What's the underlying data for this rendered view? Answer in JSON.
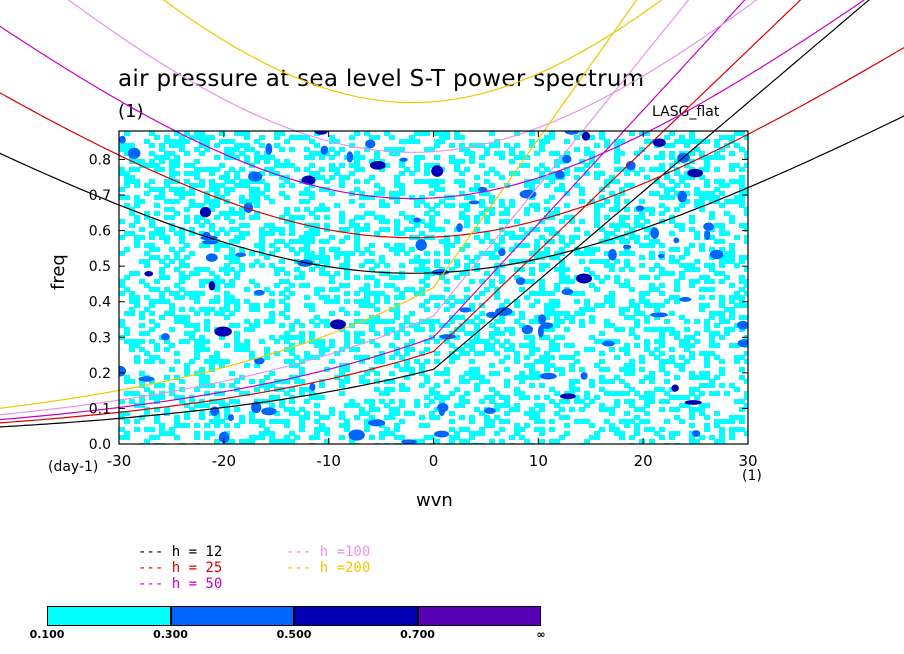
{
  "chart_data": {
    "type": "heatmap",
    "title": "air pressure at sea level S-T power spectrum",
    "subtitle": "(1)",
    "model_label": "LASG_flat",
    "xlabel": "wvn",
    "ylabel": "freq",
    "x_unit": "(1)",
    "y_unit": "(day-1)",
    "xlim": [
      -30,
      30
    ],
    "ylim": [
      0,
      0.88
    ],
    "x_ticks": [
      -30,
      -20,
      -10,
      0,
      10,
      20,
      30
    ],
    "x_tick_labels": [
      "-30",
      "-20",
      "-10",
      "0",
      "10",
      "20",
      "30"
    ],
    "y_ticks": [
      0.0,
      0.1,
      0.2,
      0.3,
      0.4,
      0.5,
      0.6,
      0.7,
      0.8
    ],
    "y_tick_labels": [
      "0.0",
      "0.1",
      "0.2",
      "0.3",
      "0.4",
      "0.5",
      "0.6",
      "0.7",
      "0.8"
    ],
    "contour_levels": [
      0.1,
      0.3,
      0.5,
      0.7
    ],
    "colorbar": {
      "labels": [
        "0.100",
        "0.300",
        "0.500",
        "0.700",
        "∞"
      ],
      "colors": [
        "#00ffff",
        "#0064ff",
        "#0000b4",
        "#5a00b4"
      ]
    },
    "dispersion_curves": [
      {
        "name": "h = 12",
        "color": "#000000",
        "min_freq": 0.48,
        "min_wvn": -2,
        "low_branch_at_0": 0.21
      },
      {
        "name": "h = 25",
        "color": "#dc0000",
        "min_freq": 0.58,
        "min_wvn": -2,
        "low_branch_at_0": 0.26
      },
      {
        "name": "h = 50",
        "color": "#c800c8",
        "min_freq": 0.69,
        "min_wvn": -2,
        "low_branch_at_0": 0.3
      },
      {
        "name": "h =100",
        "color": "#e696e6",
        "min_freq": 0.82,
        "min_wvn": -2,
        "low_branch_at_0": 0.36
      },
      {
        "name": "h =200",
        "color": "#f0c800",
        "min_freq": 0.96,
        "min_wvn": -2,
        "low_branch_at_0": 0.44
      }
    ],
    "legend": {
      "items": [
        "h = 12",
        "h = 25",
        "h = 50",
        "h =100",
        "h =200"
      ],
      "colors": [
        "#000000",
        "#dc0000",
        "#c800c8",
        "#e696e6",
        "#f0c800"
      ]
    }
  }
}
